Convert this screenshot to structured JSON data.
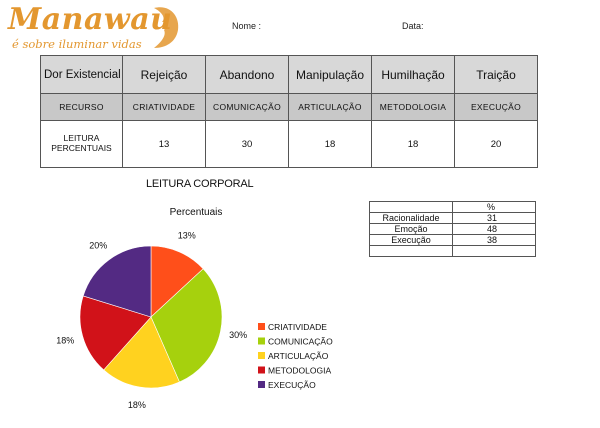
{
  "logo": {
    "word": "Manawau",
    "tagline": "é sobre iluminar vidas"
  },
  "header": {
    "nome_label": "Nome :",
    "data_label": "Data:"
  },
  "table": {
    "row1": [
      "Dor Existencial",
      "Rejeição",
      "Abandono",
      "Manipulação",
      "Humilhação",
      "Traição"
    ],
    "row2": [
      "RECURSO",
      "CRIATIVIDADE",
      "COMUNICAÇÃO",
      "ARTICULAÇÃO",
      "METODOLOGIA",
      "EXECUÇÃO"
    ],
    "row3": [
      "LEITURA PERCENTUAIS",
      "13",
      "30",
      "18",
      "18",
      "20"
    ]
  },
  "side_table": {
    "header": "%",
    "rows": [
      {
        "label": "Racionalidade",
        "value": "31"
      },
      {
        "label": "Emoção",
        "value": "48"
      },
      {
        "label": "Execução",
        "value": "38"
      }
    ]
  },
  "chart_title": "LEITURA CORPORAL",
  "chart_data": {
    "type": "pie",
    "title": "Percentuais",
    "categories": [
      "CRIATIVIDADE",
      "COMUNICAÇÃO",
      "ARTICULAÇÃO",
      "METODOLOGIA",
      "EXECUÇÃO"
    ],
    "values": [
      13,
      30,
      18,
      18,
      20
    ],
    "slice_labels": [
      "13%",
      "30%",
      "18%",
      "18%",
      "20%"
    ],
    "colors": [
      "#ff4f1a",
      "#a6d10d",
      "#ffd21f",
      "#d11219",
      "#532a83"
    ],
    "legend": "right",
    "start_angle_deg": 0,
    "direction": "clockwise"
  }
}
